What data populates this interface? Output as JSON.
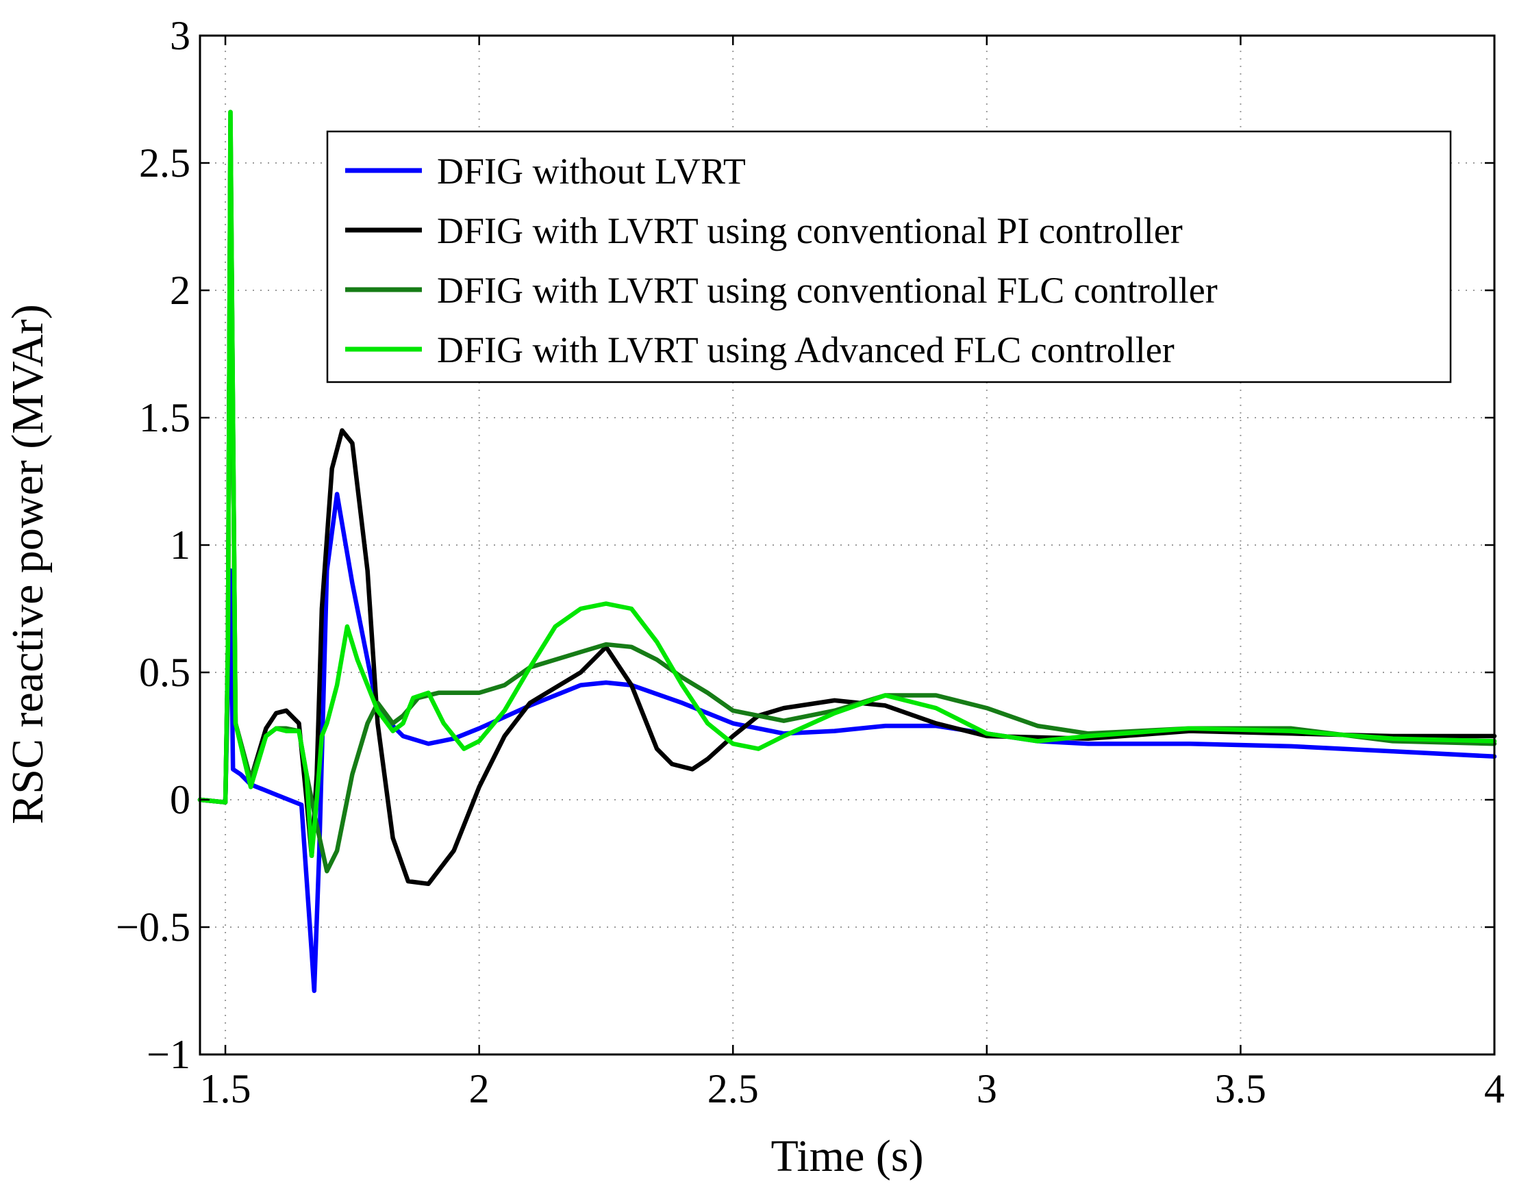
{
  "chart_data": {
    "type": "line",
    "title": "",
    "xlabel": "Time (s)",
    "ylabel": "RSC reactive power (MVAr)",
    "xlim": [
      1.45,
      4.0
    ],
    "ylim": [
      -1,
      3
    ],
    "xticks": [
      1.5,
      2,
      2.5,
      3,
      3.5,
      4
    ],
    "xtick_labels": [
      "1.5",
      "2",
      "2.5",
      "3",
      "3.5",
      "4"
    ],
    "yticks": [
      -1,
      -0.5,
      0,
      0.5,
      1,
      1.5,
      2,
      2.5,
      3
    ],
    "ytick_labels": [
      "−1",
      "−0.5",
      "0",
      "0.5",
      "1",
      "1.5",
      "2",
      "2.5",
      "3"
    ],
    "grid": true,
    "legend_position": "top-right",
    "series": [
      {
        "name": "DFIG without LVRT",
        "color": "#0000ff",
        "x": [
          1.45,
          1.5,
          1.5,
          1.51,
          1.515,
          1.53,
          1.55,
          1.6,
          1.65,
          1.67,
          1.675,
          1.685,
          1.7,
          1.72,
          1.75,
          1.78,
          1.8,
          1.85,
          1.9,
          1.95,
          2.0,
          2.1,
          2.2,
          2.25,
          2.3,
          2.4,
          2.5,
          2.6,
          2.7,
          2.8,
          2.9,
          3.0,
          3.1,
          3.2,
          3.4,
          3.6,
          3.8,
          4.0
        ],
        "y": [
          0.0,
          -0.01,
          0.0,
          0.9,
          0.12,
          0.1,
          0.06,
          0.02,
          -0.02,
          -0.6,
          -0.75,
          -0.2,
          0.9,
          1.2,
          0.85,
          0.55,
          0.35,
          0.25,
          0.22,
          0.24,
          0.28,
          0.37,
          0.45,
          0.46,
          0.45,
          0.38,
          0.3,
          0.26,
          0.27,
          0.29,
          0.29,
          0.26,
          0.23,
          0.22,
          0.22,
          0.21,
          0.19,
          0.17
        ]
      },
      {
        "name": "DFIG with LVRT using conventional PI controller",
        "color": "#000000",
        "x": [
          1.45,
          1.5,
          1.505,
          1.51,
          1.52,
          1.55,
          1.58,
          1.6,
          1.62,
          1.645,
          1.66,
          1.67,
          1.68,
          1.69,
          1.71,
          1.73,
          1.75,
          1.78,
          1.8,
          1.83,
          1.86,
          1.9,
          1.95,
          2.0,
          2.05,
          2.1,
          2.2,
          2.25,
          2.3,
          2.35,
          2.38,
          2.42,
          2.45,
          2.5,
          2.55,
          2.6,
          2.7,
          2.8,
          2.9,
          3.0,
          3.2,
          3.4,
          3.6,
          3.8,
          4.0
        ],
        "y": [
          0.0,
          -0.01,
          0.6,
          2.65,
          0.3,
          0.08,
          0.28,
          0.34,
          0.35,
          0.3,
          0.0,
          -0.22,
          0.1,
          0.75,
          1.3,
          1.45,
          1.4,
          0.9,
          0.3,
          -0.15,
          -0.32,
          -0.33,
          -0.2,
          0.05,
          0.25,
          0.38,
          0.5,
          0.6,
          0.45,
          0.2,
          0.14,
          0.12,
          0.16,
          0.25,
          0.33,
          0.36,
          0.39,
          0.37,
          0.3,
          0.25,
          0.24,
          0.27,
          0.26,
          0.25,
          0.25
        ]
      },
      {
        "name": "DFIG with LVRT using conventional FLC controller",
        "color": "#167c16",
        "x": [
          1.45,
          1.5,
          1.505,
          1.51,
          1.52,
          1.55,
          1.58,
          1.6,
          1.62,
          1.645,
          1.66,
          1.68,
          1.7,
          1.72,
          1.75,
          1.78,
          1.8,
          1.83,
          1.85,
          1.88,
          1.92,
          2.0,
          2.05,
          2.1,
          2.2,
          2.25,
          2.3,
          2.35,
          2.4,
          2.45,
          2.5,
          2.6,
          2.7,
          2.8,
          2.9,
          3.0,
          3.1,
          3.2,
          3.4,
          3.6,
          3.8,
          4.0
        ],
        "y": [
          0.0,
          -0.01,
          0.6,
          2.7,
          0.3,
          0.08,
          0.25,
          0.28,
          0.28,
          0.27,
          0.1,
          -0.1,
          -0.28,
          -0.2,
          0.1,
          0.3,
          0.38,
          0.3,
          0.33,
          0.4,
          0.42,
          0.42,
          0.45,
          0.52,
          0.58,
          0.61,
          0.6,
          0.55,
          0.48,
          0.42,
          0.35,
          0.31,
          0.35,
          0.41,
          0.41,
          0.36,
          0.29,
          0.26,
          0.28,
          0.28,
          0.23,
          0.22
        ]
      },
      {
        "name": "DFIG with LVRT using Advanced FLC controller",
        "color": "#00e600",
        "x": [
          1.45,
          1.5,
          1.505,
          1.51,
          1.52,
          1.55,
          1.58,
          1.6,
          1.62,
          1.645,
          1.66,
          1.67,
          1.68,
          1.69,
          1.7,
          1.72,
          1.74,
          1.76,
          1.8,
          1.83,
          1.85,
          1.87,
          1.9,
          1.93,
          1.97,
          2.0,
          2.05,
          2.1,
          2.15,
          2.2,
          2.25,
          2.3,
          2.35,
          2.4,
          2.45,
          2.5,
          2.55,
          2.6,
          2.7,
          2.8,
          2.9,
          3.0,
          3.1,
          3.2,
          3.4,
          3.6,
          3.8,
          4.0
        ],
        "y": [
          0.0,
          -0.01,
          0.6,
          2.7,
          0.3,
          0.05,
          0.25,
          0.28,
          0.27,
          0.27,
          0.1,
          -0.22,
          0.0,
          0.25,
          0.3,
          0.45,
          0.68,
          0.55,
          0.35,
          0.27,
          0.3,
          0.4,
          0.42,
          0.3,
          0.2,
          0.23,
          0.35,
          0.52,
          0.68,
          0.75,
          0.77,
          0.75,
          0.62,
          0.45,
          0.3,
          0.22,
          0.2,
          0.25,
          0.34,
          0.41,
          0.36,
          0.26,
          0.23,
          0.25,
          0.28,
          0.27,
          0.24,
          0.23
        ]
      }
    ]
  }
}
